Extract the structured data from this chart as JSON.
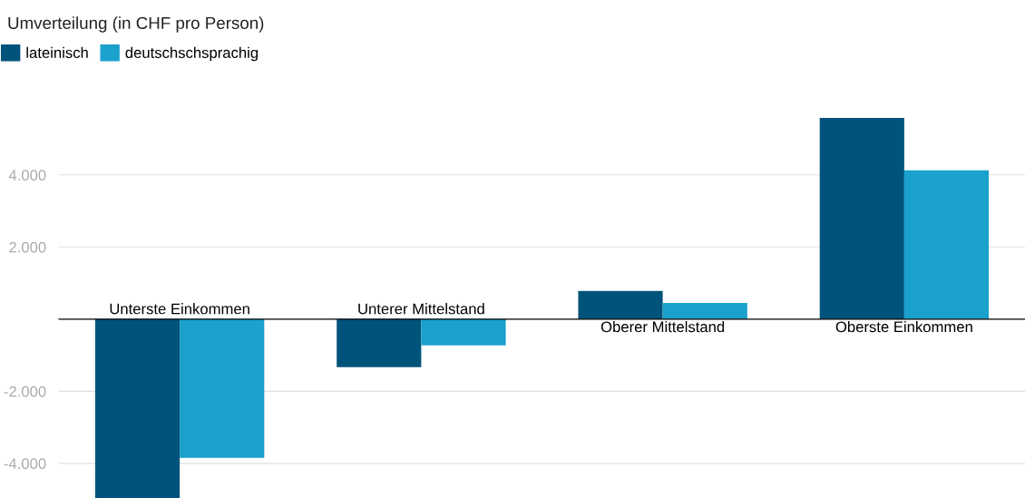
{
  "chart_data": {
    "type": "bar",
    "title": "Umverteilung (in CHF pro Person)",
    "categories": [
      "Unterste Einkommen",
      "Unterer Mittelstand",
      "Oberer Mittelstand",
      "Oberste Einkommen"
    ],
    "series": [
      {
        "name": "lateinisch",
        "color": "#00537a",
        "values": [
          -4960,
          -1330,
          780,
          5580
        ]
      },
      {
        "name": "deutschschsprachig",
        "color": "#1aa1cc",
        "values": [
          -3850,
          -730,
          450,
          4130
        ]
      }
    ],
    "ylim": [
      -4960,
      5580
    ],
    "yticks": [
      {
        "value": -4000,
        "label": "-4.000"
      },
      {
        "value": -2000,
        "label": "-2.000"
      },
      {
        "value": 2000,
        "label": "2.000"
      },
      {
        "value": 4000,
        "label": "4.000"
      }
    ],
    "grid": "y",
    "legend": "top left"
  }
}
